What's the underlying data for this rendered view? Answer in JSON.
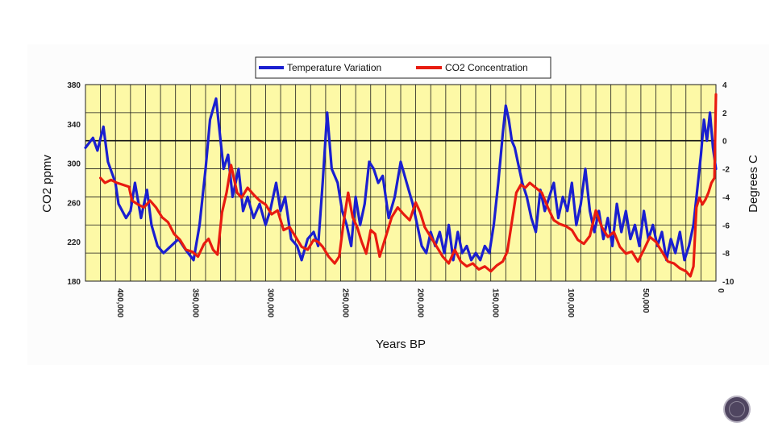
{
  "chart_data": {
    "type": "line",
    "title": "",
    "xlabel": "Years BP",
    "ylabel_left": "CO2 ppmv",
    "ylabel_right": "Degrees C",
    "x_reversed": true,
    "xlim": [
      0,
      420000
    ],
    "ylim_left": [
      180,
      380
    ],
    "ylim_right": [
      -10,
      4
    ],
    "x_ticks": [
      400000,
      350000,
      300000,
      250000,
      200000,
      150000,
      100000,
      50000,
      0
    ],
    "x_tick_labels": [
      "400,000",
      "350,000",
      "300,000",
      "250,000",
      "200,000",
      "150,000",
      "100,000",
      "50,000",
      "0"
    ],
    "y_left_ticks": [
      380,
      340,
      300,
      260,
      220,
      180
    ],
    "y_right_ticks": [
      4,
      2,
      0,
      -2,
      -4,
      -6,
      -8,
      -10
    ],
    "grid": true,
    "legend_position": "top-center",
    "background_color": "#fdf9a6",
    "series": [
      {
        "name": "Temperature Variation",
        "axis": "right",
        "color": "#1a1fd0",
        "x": [
          420000,
          415000,
          412000,
          408000,
          405000,
          400000,
          398000,
          393000,
          390000,
          387000,
          383000,
          379000,
          376000,
          372000,
          368000,
          363000,
          358000,
          353000,
          348000,
          344000,
          340000,
          337000,
          333000,
          330000,
          328000,
          325000,
          322000,
          318000,
          315000,
          312000,
          308000,
          304000,
          300000,
          297000,
          293000,
          290000,
          287000,
          283000,
          279000,
          276000,
          272000,
          268000,
          265000,
          262000,
          259000,
          256000,
          252000,
          249000,
          246000,
          243000,
          240000,
          237000,
          234000,
          231000,
          228000,
          225000,
          222000,
          218000,
          214000,
          210000,
          206000,
          202000,
          199000,
          196000,
          193000,
          190000,
          187000,
          184000,
          181000,
          178000,
          175000,
          172000,
          169000,
          166000,
          163000,
          160000,
          157000,
          154000,
          151000,
          148000,
          145000,
          142000,
          140000,
          138000,
          136000,
          134000,
          132000,
          129000,
          126000,
          123000,
          120000,
          117000,
          114000,
          111000,
          108000,
          105000,
          102000,
          99000,
          96000,
          93000,
          90000,
          87000,
          84000,
          81000,
          78000,
          75000,
          72000,
          69000,
          66000,
          63000,
          60000,
          57000,
          54000,
          51000,
          48000,
          45000,
          42000,
          39000,
          36000,
          33000,
          30000,
          27000,
          24000,
          21000,
          18000,
          15000,
          12000,
          10000,
          8000,
          6000,
          4000,
          2000,
          0
        ],
        "values": [
          -0.5,
          0.2,
          -0.7,
          1.0,
          -1.5,
          -3.0,
          -4.5,
          -5.5,
          -5.0,
          -3.0,
          -5.5,
          -3.5,
          -6.0,
          -7.5,
          -8.0,
          -7.5,
          -7.0,
          -7.8,
          -8.5,
          -6.0,
          -2.0,
          1.5,
          3.0,
          0.0,
          -2.0,
          -1.0,
          -4.0,
          -2.0,
          -5.0,
          -4.0,
          -5.5,
          -4.5,
          -6.0,
          -5.0,
          -3.0,
          -5.0,
          -4.0,
          -7.0,
          -7.5,
          -8.5,
          -7.0,
          -6.5,
          -7.5,
          -3.0,
          2.0,
          -2.0,
          -3.0,
          -5.0,
          -6.0,
          -7.5,
          -4.0,
          -6.0,
          -4.5,
          -1.5,
          -2.0,
          -3.0,
          -2.5,
          -5.5,
          -4.0,
          -1.5,
          -3.0,
          -4.5,
          -6.0,
          -7.5,
          -8.0,
          -6.5,
          -7.5,
          -6.5,
          -8.0,
          -6.0,
          -8.5,
          -6.5,
          -8.0,
          -7.5,
          -8.5,
          -8.0,
          -8.5,
          -7.5,
          -8.0,
          -6.0,
          -3.0,
          0.5,
          2.5,
          1.5,
          0.0,
          -0.5,
          -1.5,
          -3.0,
          -4.0,
          -5.5,
          -6.5,
          -3.5,
          -5.0,
          -4.0,
          -3.0,
          -5.5,
          -4.0,
          -5.0,
          -3.0,
          -6.0,
          -4.5,
          -2.0,
          -5.0,
          -6.5,
          -5.0,
          -7.0,
          -5.5,
          -7.5,
          -4.5,
          -6.5,
          -5.0,
          -7.0,
          -6.0,
          -7.5,
          -5.0,
          -7.0,
          -6.0,
          -7.5,
          -6.5,
          -8.5,
          -7.0,
          -8.0,
          -6.5,
          -8.5,
          -7.5,
          -6.0,
          -3.0,
          -1.0,
          1.5,
          0.0,
          2.0,
          -0.5,
          -2.0
        ]
      },
      {
        "name": "CO2 Concentration",
        "axis": "left",
        "color": "#e81b10",
        "x": [
          410000,
          407000,
          403000,
          399000,
          395000,
          391000,
          389000,
          385000,
          381000,
          377000,
          373000,
          369000,
          365000,
          361000,
          357000,
          353000,
          349000,
          345000,
          341000,
          338000,
          335000,
          332000,
          329000,
          326000,
          323000,
          319000,
          316000,
          312000,
          308000,
          304000,
          300000,
          296000,
          292000,
          288000,
          284000,
          280000,
          276000,
          272000,
          268000,
          265000,
          262000,
          258000,
          254000,
          251000,
          248000,
          245000,
          242000,
          239000,
          236000,
          233000,
          230000,
          227000,
          224000,
          220000,
          216000,
          212000,
          208000,
          204000,
          200000,
          197000,
          194000,
          190000,
          186000,
          182000,
          178000,
          174000,
          170000,
          166000,
          162000,
          158000,
          154000,
          150000,
          146000,
          142000,
          139000,
          136000,
          133000,
          130000,
          127000,
          124000,
          120000,
          116000,
          112000,
          108000,
          104000,
          100000,
          96000,
          92000,
          88000,
          84000,
          80000,
          76000,
          72000,
          68000,
          64000,
          60000,
          56000,
          52000,
          48000,
          44000,
          40000,
          36000,
          32000,
          28000,
          24000,
          20000,
          17000,
          15000,
          13000,
          11000,
          9000,
          7000,
          5000,
          3000,
          1000,
          0
        ],
        "values": [
          285,
          280,
          283,
          280,
          278,
          276,
          262,
          258,
          255,
          262,
          255,
          245,
          240,
          228,
          222,
          212,
          210,
          205,
          218,
          223,
          212,
          207,
          250,
          270,
          298,
          270,
          265,
          275,
          268,
          262,
          258,
          248,
          252,
          232,
          235,
          225,
          215,
          212,
          222,
          220,
          215,
          205,
          198,
          205,
          240,
          270,
          245,
          235,
          220,
          208,
          232,
          228,
          205,
          225,
          245,
          255,
          248,
          242,
          260,
          250,
          235,
          225,
          215,
          205,
          198,
          212,
          200,
          195,
          198,
          192,
          195,
          190,
          196,
          200,
          210,
          240,
          270,
          278,
          275,
          280,
          275,
          270,
          255,
          242,
          238,
          236,
          232,
          222,
          218,
          226,
          252,
          235,
          225,
          230,
          215,
          208,
          210,
          200,
          212,
          225,
          220,
          210,
          200,
          198,
          193,
          190,
          185,
          195,
          255,
          265,
          258,
          263,
          270,
          280,
          285,
          370
        ]
      }
    ]
  }
}
